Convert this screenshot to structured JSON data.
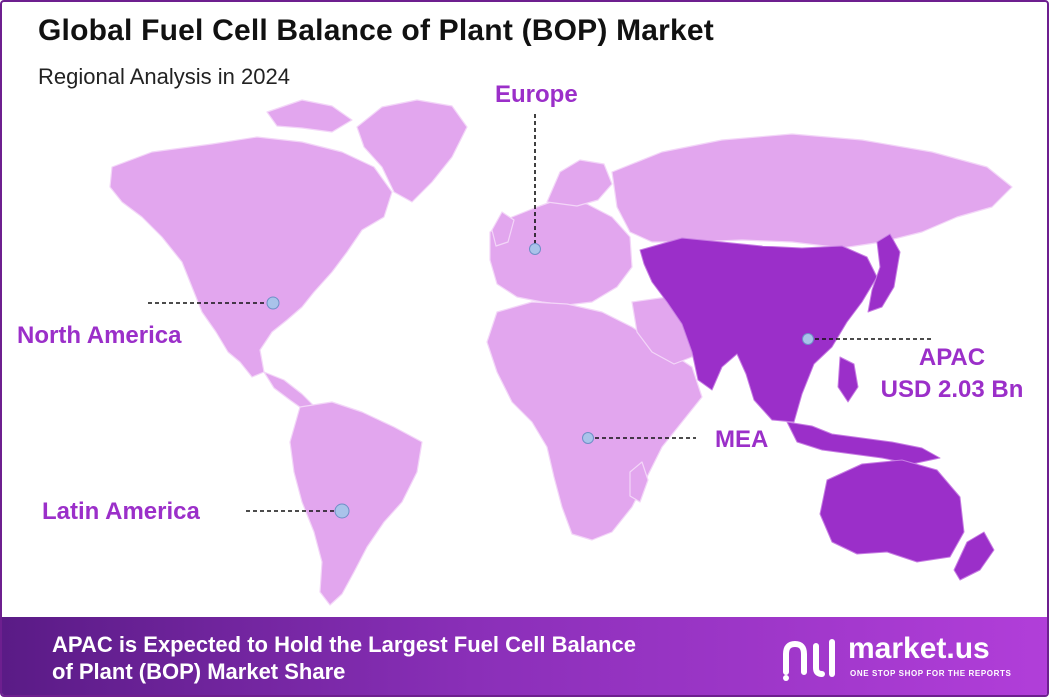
{
  "title": "Global Fuel Cell Balance of Plant (BOP) Market",
  "subtitle": "Regional Analysis in 2024",
  "colors": {
    "land": "#e2a6ee",
    "highlight": "#9b2fc9",
    "label": "#9b2fc9",
    "marker": "#a9c3ea",
    "footer_start": "#5a1b86",
    "footer_end": "#b13ed9"
  },
  "regions": {
    "north_america": "North America",
    "europe": "Europe",
    "apac": "APAC",
    "apac_value": "USD 2.03 Bn",
    "mea": "MEA",
    "latin_america": "Latin America"
  },
  "highlighted_region": "APAC",
  "footer": {
    "line1": "APAC is Expected to Hold the Largest Fuel Cell Balance",
    "line2": "of Plant (BOP) Market Share"
  },
  "brand": {
    "name": "market.us",
    "tagline": "ONE STOP SHOP FOR THE REPORTS"
  }
}
